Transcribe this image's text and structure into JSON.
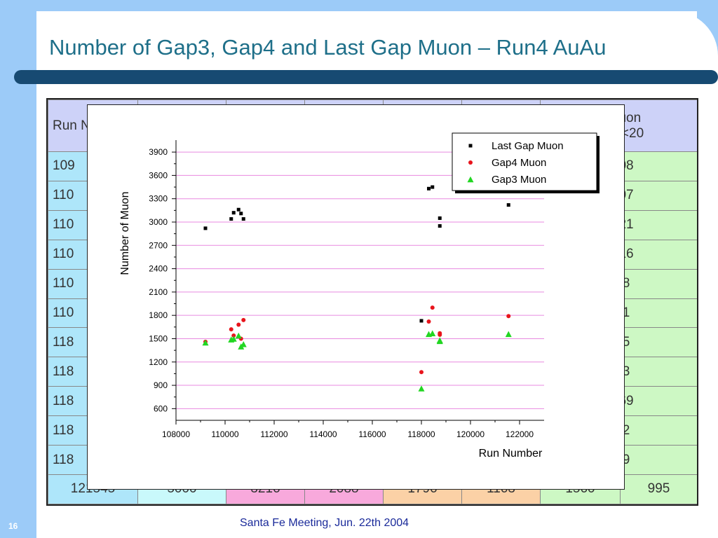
{
  "slide": {
    "title": "Number of Gap3, Gap4 and Last Gap Muon – Run4 AuAu",
    "footer": "Santa Fe Meeting, Jun. 22th 2004",
    "page_number": "16"
  },
  "table": {
    "header_row_1": [
      "Run N",
      "",
      "",
      "",
      "",
      "",
      "o Muon"
    ],
    "header_row_2": [
      "",
      "",
      "",
      "",
      "",
      "",
      "Chi2<20"
    ],
    "rows": [
      [
        "109",
        "",
        "",
        "",
        "",
        "",
        "1008"
      ],
      [
        "110",
        "",
        "",
        "",
        "",
        "",
        "1007"
      ],
      [
        "110",
        "",
        "",
        "",
        "",
        "",
        "1021"
      ],
      [
        "110",
        "",
        "",
        "",
        "",
        "",
        "1016"
      ],
      [
        "110",
        "",
        "",
        "",
        "",
        "",
        "918"
      ],
      [
        "110",
        "",
        "",
        "",
        "",
        "",
        "971"
      ],
      [
        "118",
        "",
        "",
        "",
        "",
        "",
        "585"
      ],
      [
        "118",
        "",
        "",
        "",
        "",
        "",
        "993"
      ],
      [
        "118",
        "",
        "",
        "",
        "",
        "",
        "1069"
      ],
      [
        "118",
        "",
        "",
        "",
        "",
        "",
        "972"
      ],
      [
        "118",
        "",
        "",
        "",
        "",
        "",
        "959"
      ],
      [
        "121545",
        "5000",
        "3216",
        "2088",
        "1796",
        "1163",
        "1560",
        "995"
      ]
    ],
    "colors": {
      "run": "#aee6fa",
      "c1": "#c9f9fb",
      "c2": "#f8a9dc",
      "c3": "#f8a9dc",
      "c4": "#fbd1a6",
      "c5": "#fbd1a6",
      "c6": "#cdf8c4",
      "c7": "#cdf8c4",
      "header_accent": "#cdd2f8"
    }
  },
  "chart_data": {
    "type": "scatter",
    "title": "",
    "xlabel": "Run Number",
    "ylabel": "Number of Muon",
    "xlim": [
      108000,
      123000
    ],
    "ylim": [
      450,
      4000
    ],
    "xticks": [
      108000,
      110000,
      112000,
      114000,
      116000,
      118000,
      120000,
      122000
    ],
    "yticks": [
      600,
      900,
      1200,
      1500,
      1800,
      2100,
      2400,
      2700,
      3000,
      3300,
      3600,
      3900
    ],
    "grid": "horizontal",
    "grid_color": "#e88ae0",
    "legend_position": "top-right",
    "series": [
      {
        "name": "Last Gap Muon",
        "marker": "square",
        "color": "#000000",
        "points": [
          [
            109200,
            2920
          ],
          [
            110250,
            3040
          ],
          [
            110350,
            3120
          ],
          [
            110550,
            3160
          ],
          [
            110650,
            3110
          ],
          [
            110750,
            3040
          ],
          [
            118000,
            1730
          ],
          [
            118300,
            3430
          ],
          [
            118450,
            3450
          ],
          [
            118750,
            3050
          ],
          [
            118750,
            2950
          ],
          [
            121550,
            3220
          ]
        ]
      },
      {
        "name": "Gap4 Muon",
        "marker": "circle",
        "color": "#e8141c",
        "points": [
          [
            109200,
            1460
          ],
          [
            110250,
            1620
          ],
          [
            110350,
            1540
          ],
          [
            110550,
            1680
          ],
          [
            110650,
            1500
          ],
          [
            110750,
            1740
          ],
          [
            118000,
            1070
          ],
          [
            118300,
            1720
          ],
          [
            118450,
            1900
          ],
          [
            118750,
            1570
          ],
          [
            118750,
            1550
          ],
          [
            121550,
            1790
          ]
        ]
      },
      {
        "name": "Gap3 Muon",
        "marker": "triangle",
        "color": "#22d622",
        "points": [
          [
            109200,
            1450
          ],
          [
            110250,
            1490
          ],
          [
            110350,
            1500
          ],
          [
            110550,
            1540
          ],
          [
            110650,
            1400
          ],
          [
            110750,
            1430
          ],
          [
            118000,
            860
          ],
          [
            118300,
            1560
          ],
          [
            118450,
            1570
          ],
          [
            118750,
            1480
          ],
          [
            118750,
            1470
          ],
          [
            121550,
            1560
          ]
        ]
      }
    ]
  }
}
